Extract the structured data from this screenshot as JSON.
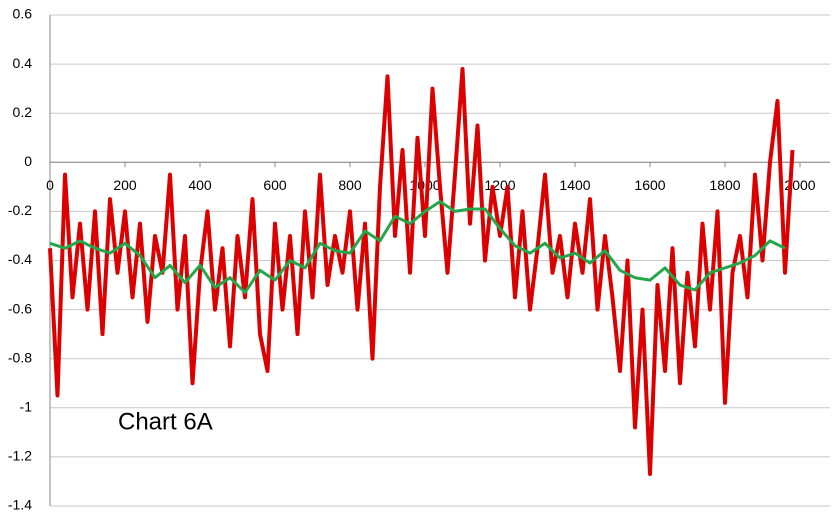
{
  "chart_data": {
    "type": "line",
    "annotation": "Chart 6A",
    "xlim": [
      0,
      2000
    ],
    "xticks": [
      0,
      200,
      400,
      600,
      800,
      1000,
      1200,
      1400,
      1600,
      1800,
      2000
    ],
    "ylim": [
      -1.4,
      0.6
    ],
    "yticks": [
      -1.4,
      -1.2,
      -1,
      -0.8,
      -0.6,
      -0.4,
      -0.2,
      0,
      0.2,
      0.4,
      0.6
    ],
    "grid": true,
    "series": [
      {
        "color": "#dd0000",
        "x": [
          0,
          20,
          40,
          60,
          80,
          100,
          120,
          140,
          160,
          180,
          200,
          220,
          240,
          260,
          280,
          300,
          320,
          340,
          360,
          380,
          400,
          420,
          440,
          460,
          480,
          500,
          520,
          540,
          560,
          580,
          600,
          620,
          640,
          660,
          680,
          700,
          720,
          740,
          760,
          780,
          800,
          820,
          840,
          860,
          880,
          900,
          920,
          940,
          960,
          980,
          1000,
          1020,
          1040,
          1060,
          1080,
          1100,
          1120,
          1140,
          1160,
          1180,
          1200,
          1220,
          1240,
          1260,
          1280,
          1300,
          1320,
          1340,
          1360,
          1380,
          1400,
          1420,
          1440,
          1460,
          1480,
          1500,
          1520,
          1540,
          1560,
          1580,
          1600,
          1620,
          1640,
          1660,
          1680,
          1700,
          1720,
          1740,
          1760,
          1780,
          1800,
          1820,
          1840,
          1860,
          1880,
          1900,
          1920,
          1940,
          1960,
          1980
        ],
        "values": [
          -0.35,
          -0.95,
          -0.05,
          -0.55,
          -0.25,
          -0.6,
          -0.2,
          -0.7,
          -0.15,
          -0.45,
          -0.2,
          -0.55,
          -0.25,
          -0.65,
          -0.3,
          -0.45,
          -0.05,
          -0.6,
          -0.3,
          -0.9,
          -0.45,
          -0.2,
          -0.6,
          -0.35,
          -0.75,
          -0.3,
          -0.55,
          -0.15,
          -0.7,
          -0.85,
          -0.25,
          -0.6,
          -0.3,
          -0.7,
          -0.2,
          -0.55,
          -0.05,
          -0.5,
          -0.3,
          -0.45,
          -0.2,
          -0.6,
          -0.25,
          -0.8,
          -0.1,
          0.35,
          -0.3,
          0.05,
          -0.45,
          0.1,
          -0.3,
          0.3,
          -0.1,
          -0.45,
          -0.05,
          0.38,
          -0.25,
          0.15,
          -0.4,
          -0.1,
          -0.3,
          -0.1,
          -0.55,
          -0.2,
          -0.6,
          -0.35,
          -0.05,
          -0.45,
          -0.3,
          -0.55,
          -0.25,
          -0.45,
          -0.15,
          -0.6,
          -0.3,
          -0.55,
          -0.85,
          -0.4,
          -1.08,
          -0.6,
          -1.27,
          -0.5,
          -0.85,
          -0.35,
          -0.9,
          -0.45,
          -0.75,
          -0.25,
          -0.6,
          -0.2,
          -0.98,
          -0.45,
          -0.3,
          -0.55,
          -0.05,
          -0.4,
          0.0,
          0.25,
          -0.45,
          0.05
        ]
      },
      {
        "color": "#22a84a",
        "x": [
          0,
          40,
          80,
          120,
          160,
          200,
          240,
          280,
          320,
          360,
          400,
          440,
          480,
          520,
          560,
          600,
          640,
          680,
          720,
          760,
          800,
          840,
          880,
          920,
          960,
          1000,
          1040,
          1080,
          1120,
          1160,
          1200,
          1240,
          1280,
          1320,
          1360,
          1400,
          1440,
          1480,
          1520,
          1560,
          1600,
          1640,
          1680,
          1720,
          1760,
          1800,
          1840,
          1880,
          1920,
          1960
        ],
        "values": [
          -0.33,
          -0.35,
          -0.32,
          -0.35,
          -0.37,
          -0.33,
          -0.38,
          -0.47,
          -0.42,
          -0.49,
          -0.42,
          -0.51,
          -0.47,
          -0.53,
          -0.44,
          -0.48,
          -0.4,
          -0.43,
          -0.33,
          -0.36,
          -0.37,
          -0.28,
          -0.32,
          -0.22,
          -0.25,
          -0.2,
          -0.16,
          -0.2,
          -0.19,
          -0.19,
          -0.27,
          -0.34,
          -0.37,
          -0.33,
          -0.39,
          -0.37,
          -0.41,
          -0.36,
          -0.44,
          -0.47,
          -0.48,
          -0.43,
          -0.5,
          -0.52,
          -0.45,
          -0.43,
          -0.41,
          -0.38,
          -0.32,
          -0.35
        ]
      }
    ]
  }
}
